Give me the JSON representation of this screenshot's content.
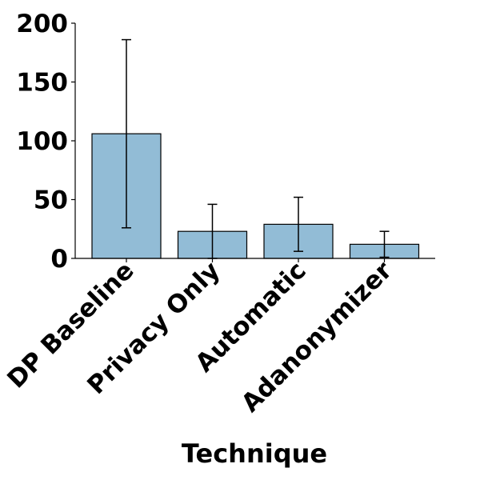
{
  "chart_data": {
    "type": "bar",
    "title": "",
    "xlabel": "Technique",
    "ylabel": "",
    "categories": [
      "DP Baseline",
      "Privacy Only",
      "Automatic",
      "Adanonymizer"
    ],
    "values": [
      106,
      23,
      29,
      12
    ],
    "errors": [
      80,
      23,
      23,
      11
    ],
    "ylim": [
      0,
      200
    ],
    "yticks": [
      "0",
      "50",
      "100",
      "150",
      "200"
    ],
    "grid": false,
    "legend": "none",
    "bar_color": "#92bcd6",
    "edge_color": "#000000"
  }
}
